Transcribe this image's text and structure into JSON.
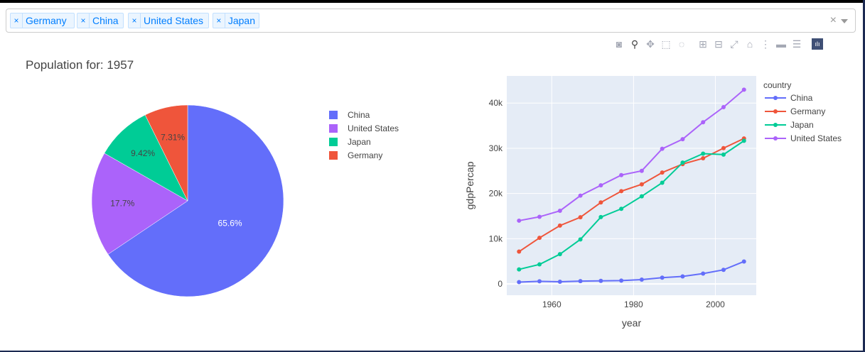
{
  "dropdown": {
    "tags": [
      "Germany",
      "China",
      "United States",
      "Japan"
    ],
    "remove_glyph": "×",
    "clear_glyph": "×"
  },
  "modebar_icons": [
    "camera-icon",
    "zoom-icon",
    "pan-icon",
    "box-select-icon",
    "lasso-icon",
    "zoom-in-icon",
    "zoom-out-icon",
    "autoscale-icon",
    "reset-axes-icon",
    "spike-lines-icon",
    "hover-closest-icon",
    "hover-compare-icon",
    "plotly-logo-icon"
  ],
  "colors": {
    "China": "#636efa",
    "Germany": "#ef553b",
    "Japan": "#00cc96",
    "United States": "#ab63fa"
  },
  "chart_data": [
    {
      "type": "pie",
      "title": "Population for: 1957",
      "labels": [
        "China",
        "United States",
        "Japan",
        "Germany"
      ],
      "values": [
        65.6,
        17.7,
        9.42,
        7.31
      ],
      "text": [
        "65.6%",
        "17.7%",
        "9.42%",
        "7.31%"
      ],
      "legend_position": "right"
    },
    {
      "type": "line",
      "xlabel": "year",
      "ylabel": "gdpPercap",
      "legend_title": "country",
      "legend_position": "top-right",
      "x": [
        1952,
        1957,
        1962,
        1967,
        1972,
        1977,
        1982,
        1987,
        1992,
        1997,
        2002,
        2007
      ],
      "xticks": [
        "1960",
        "1980",
        "2000"
      ],
      "yticks": [
        "0",
        "10k",
        "20k",
        "30k",
        "40k"
      ],
      "xlim": [
        1949,
        2010
      ],
      "ylim": [
        -2500,
        46000
      ],
      "grid": true,
      "series": [
        {
          "name": "China",
          "values": [
            400,
            576,
            488,
            613,
            677,
            741,
            962,
            1379,
            1656,
            2289,
            3119,
            4959
          ]
        },
        {
          "name": "Germany",
          "values": [
            7144,
            10188,
            12902,
            14746,
            18016,
            20513,
            22032,
            24639,
            26505,
            27789,
            30036,
            32170
          ]
        },
        {
          "name": "Japan",
          "values": [
            3217,
            4318,
            6577,
            9847,
            14779,
            16610,
            19384,
            22376,
            26825,
            28817,
            28605,
            31656
          ]
        },
        {
          "name": "United States",
          "values": [
            13990,
            14847,
            16173,
            19530,
            21806,
            24073,
            25010,
            29884,
            32004,
            35767,
            39097,
            42952
          ]
        }
      ]
    }
  ]
}
